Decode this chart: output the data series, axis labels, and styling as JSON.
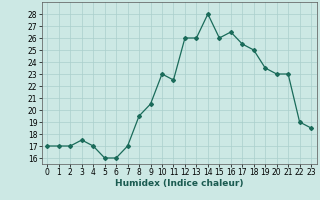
{
  "x": [
    0,
    1,
    2,
    3,
    4,
    5,
    6,
    7,
    8,
    9,
    10,
    11,
    12,
    13,
    14,
    15,
    16,
    17,
    18,
    19,
    20,
    21,
    22,
    23
  ],
  "y": [
    17,
    17,
    17,
    17.5,
    17,
    16,
    16,
    17,
    19.5,
    20.5,
    23,
    22.5,
    26,
    26,
    28,
    26,
    26.5,
    25.5,
    25,
    23.5,
    23,
    23,
    19,
    18.5
  ],
  "xlabel": "Humidex (Indice chaleur)",
  "ylim": [
    15.5,
    29
  ],
  "xlim": [
    -0.5,
    23.5
  ],
  "yticks": [
    16,
    17,
    18,
    19,
    20,
    21,
    22,
    23,
    24,
    25,
    26,
    27,
    28
  ],
  "xticks": [
    0,
    1,
    2,
    3,
    4,
    5,
    6,
    7,
    8,
    9,
    10,
    11,
    12,
    13,
    14,
    15,
    16,
    17,
    18,
    19,
    20,
    21,
    22,
    23
  ],
  "line_color": "#1a6b5a",
  "bg_color": "#cce8e4",
  "grid_color": "#aacfcc",
  "tick_fontsize": 5.5,
  "label_fontsize": 6.5
}
